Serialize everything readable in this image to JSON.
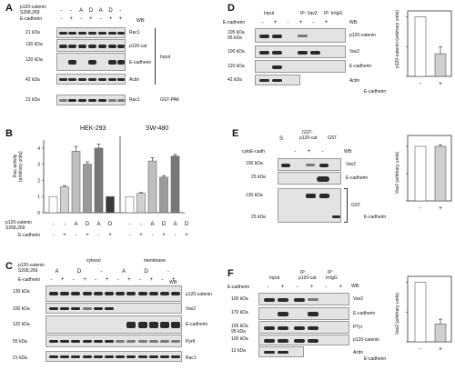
{
  "panels": {
    "A": {
      "label": "A",
      "header": {
        "row1": "p120-catenin",
        "row1b": "S268,269",
        "row2": "E-cadherin"
      },
      "lane_marks_p120": [
        "-",
        "-",
        "A",
        "D",
        "A",
        "D",
        "-"
      ],
      "lane_marks_ecad": [
        "-",
        "+",
        "-",
        "+",
        "-",
        "+",
        "+"
      ],
      "wb": "WB:",
      "mw": [
        "21 kDa",
        "130 kDa",
        "120 kDa",
        "42 kDa",
        "21 kDa"
      ],
      "bands": [
        "Rac1",
        "p120-cat",
        "E-cadherin",
        "Actin",
        "Rac1"
      ],
      "group1": "Input",
      "group2": "GST-PAK"
    },
    "B": {
      "label": "B",
      "titles": [
        "HEK-293",
        "SW-480"
      ],
      "ylabel": "Rac activity\n(arbitrary units)",
      "row1_label": "p120-catenin\nS268,269",
      "row2_label": "E-cadherin"
    },
    "C": {
      "label": "C",
      "header": {
        "row1": "p120-catenin",
        "row1b": "S268,269",
        "row2": "E-cadherin"
      },
      "groups": [
        "cytosol",
        "membrane"
      ],
      "lane_marks_p120": [
        "A",
        "D",
        "-",
        "A",
        "D",
        "-"
      ],
      "lane_marks_ecad": [
        "-",
        "+",
        "-",
        "+",
        "-",
        "+",
        "-",
        "+",
        "-",
        "+",
        "-",
        "+"
      ],
      "wb": "WB:",
      "mw": [
        "130 kDa",
        "100 kDa",
        "120 kDa",
        "55 kDa",
        "21 kDa"
      ],
      "bands": [
        "p120-catenin",
        "Vav2",
        "E-cadherin",
        "PyrK",
        "Rac1"
      ]
    },
    "D": {
      "label": "D",
      "groups": [
        "Input",
        "IP: Vav2",
        "IP: IrrIgG"
      ],
      "row_label": "E-cadherin",
      "marks": [
        "-",
        "+",
        "-",
        "+",
        "-",
        "+"
      ],
      "wb": "WB:",
      "mw": [
        "105 kDa",
        "95 kDa",
        "100 kDa",
        "120 kDa",
        "42 kDa"
      ],
      "bands": [
        "p120-catenin",
        "Vav2",
        "E-cadherin",
        "Actin"
      ],
      "chart_ylabel": "p120-catenin (arbitrary units)",
      "chart_xlabel": "E-cadherin",
      "chart_marks": [
        "-",
        "+"
      ]
    },
    "E": {
      "label": "E",
      "header": {
        "si": "S",
        "gst_p120": "GST-",
        "gst_p120b": "p120-cat",
        "gst": "GST",
        "cyto": "cytoE-cadh"
      },
      "marks": [
        "-",
        "+",
        "-"
      ],
      "wb": "WB:",
      "mw": [
        "100 kDa",
        "25 kDa",
        "130 kDa",
        "25 kDa"
      ],
      "bands": [
        "Vav2",
        "E-cadherin",
        "GST"
      ],
      "chart_ylabel": "Vav2 (arbitrary units)",
      "chart_xlabel": "E-cadherin",
      "chart_marks": [
        "-",
        "+"
      ]
    },
    "F": {
      "label": "F",
      "groups": [
        "Input",
        "IP:",
        "IP:"
      ],
      "groups2": [
        "",
        "p120-cat",
        "IrrIgG"
      ],
      "row_label": "E-cadherin",
      "marks": [
        "-",
        "+",
        "-",
        "+",
        "-",
        "+"
      ],
      "wb": "WB:",
      "mw": [
        "100 kDa",
        "170 kDa",
        "105 kDa",
        "95 kDa",
        "100 kDa",
        "12 kDa"
      ],
      "bands": [
        "Vav2",
        "E-cadherin",
        "PTyr",
        "p120-catenin",
        "Actin"
      ],
      "chart_ylabel": "Vav2 (arbitrary units)",
      "chart_xlabel": "E-cadherin",
      "chart_marks": [
        "-",
        "+"
      ]
    }
  },
  "chart_data": [
    {
      "id": "B",
      "type": "bar",
      "title": "",
      "ylabel": "Rac activity (arbitrary units)",
      "ylim": [
        0,
        4.5
      ],
      "yticks": [
        0,
        1,
        2,
        3,
        4
      ],
      "groups": [
        {
          "name": "HEK-293",
          "p120": [
            "-",
            "-",
            "A",
            "D",
            "A",
            "D"
          ],
          "ecad": [
            "-",
            "+",
            "-",
            "+",
            "-",
            "+"
          ],
          "values": [
            1.0,
            1.6,
            3.8,
            3.0,
            4.0,
            1.0
          ],
          "errors": [
            0,
            0.08,
            0.3,
            0.15,
            0.25,
            0
          ]
        },
        {
          "name": "SW-480",
          "p120": [
            "-",
            "-",
            "A",
            "D",
            "A",
            "D"
          ],
          "ecad": [
            "-",
            "+",
            "-",
            "+",
            "-",
            "+"
          ],
          "values": [
            1.0,
            1.2,
            3.2,
            2.2,
            3.5,
            0
          ],
          "errors": [
            0,
            0.05,
            0.2,
            0.1,
            0.1,
            0
          ]
        }
      ],
      "colors": [
        "#ffffff",
        "#d0d0d0",
        "#bfbfbf",
        "#9a9a9a",
        "#777777",
        "#3a3a3a"
      ]
    },
    {
      "id": "D",
      "type": "bar",
      "ylabel": "p120-catenin (arbitrary units)",
      "categories": [
        "-",
        "+"
      ],
      "values": [
        1.0,
        0.38
      ],
      "errors": [
        0,
        0.12
      ],
      "ylim": [
        0,
        1.1
      ],
      "yticks": [
        0,
        0.5,
        1
      ]
    },
    {
      "id": "E",
      "type": "bar",
      "ylabel": "Vav2 (arbitrary units)",
      "categories": [
        "-",
        "+"
      ],
      "values": [
        1.0,
        1.0
      ],
      "errors": [
        0,
        0.03
      ],
      "ylim": [
        0,
        1.2
      ],
      "yticks": [
        0,
        0.5,
        1
      ]
    },
    {
      "id": "F",
      "type": "bar",
      "ylabel": "Vav2 (arbitrary units)",
      "categories": [
        "-",
        "+"
      ],
      "values": [
        1.0,
        0.3
      ],
      "errors": [
        0,
        0.08
      ],
      "ylim": [
        0,
        1.1
      ],
      "yticks": [
        0,
        0.5,
        1
      ]
    }
  ]
}
